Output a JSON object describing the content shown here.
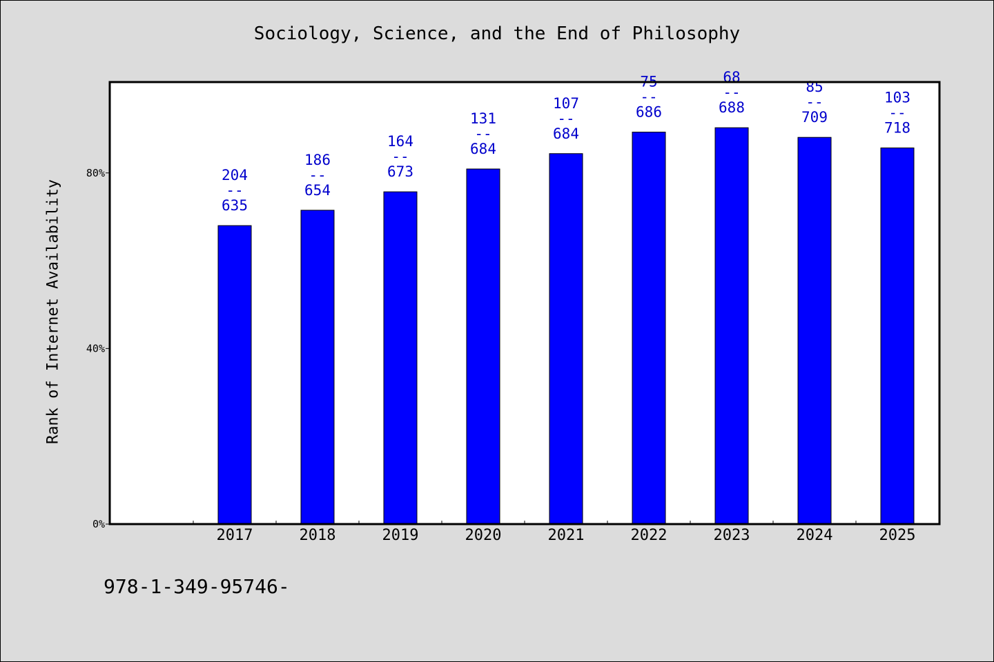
{
  "chart_data": {
    "type": "bar",
    "title": "Sociology, Science, and the End of Philosophy",
    "ylabel": "Rank of Internet Availability",
    "xlabel": "",
    "categories": [
      "2017",
      "2018",
      "2019",
      "2020",
      "2021",
      "2022",
      "2023",
      "2024",
      "2025"
    ],
    "values": [
      68,
      71.5,
      75.7,
      80.9,
      84.4,
      89.3,
      90.3,
      88.1,
      85.7
    ],
    "value_unit": "%",
    "data_labels": [
      {
        "top": "204",
        "sep": "--",
        "bottom": "635"
      },
      {
        "top": "186",
        "sep": "--",
        "bottom": "654"
      },
      {
        "top": "164",
        "sep": "--",
        "bottom": "673"
      },
      {
        "top": "131",
        "sep": "--",
        "bottom": "684"
      },
      {
        "top": "107",
        "sep": "--",
        "bottom": "684"
      },
      {
        "top": "75",
        "sep": "--",
        "bottom": "686"
      },
      {
        "top": "68",
        "sep": "--",
        "bottom": "688"
      },
      {
        "top": "85",
        "sep": "--",
        "bottom": "709"
      },
      {
        "top": "103",
        "sep": "--",
        "bottom": "718"
      }
    ],
    "yticks": [
      {
        "value": 0,
        "label": "0%"
      },
      {
        "value": 40,
        "label": "40%"
      },
      {
        "value": 80,
        "label": "80%"
      }
    ],
    "ylim": [
      0,
      100.7
    ],
    "grid": false,
    "legend": "none",
    "colors": {
      "bar": "#0000ff",
      "label": "#0000cc",
      "background": "#dcdcdc",
      "plot_background": "#ffffff"
    }
  },
  "footer": {
    "isbn": "978-1-349-95746-"
  }
}
